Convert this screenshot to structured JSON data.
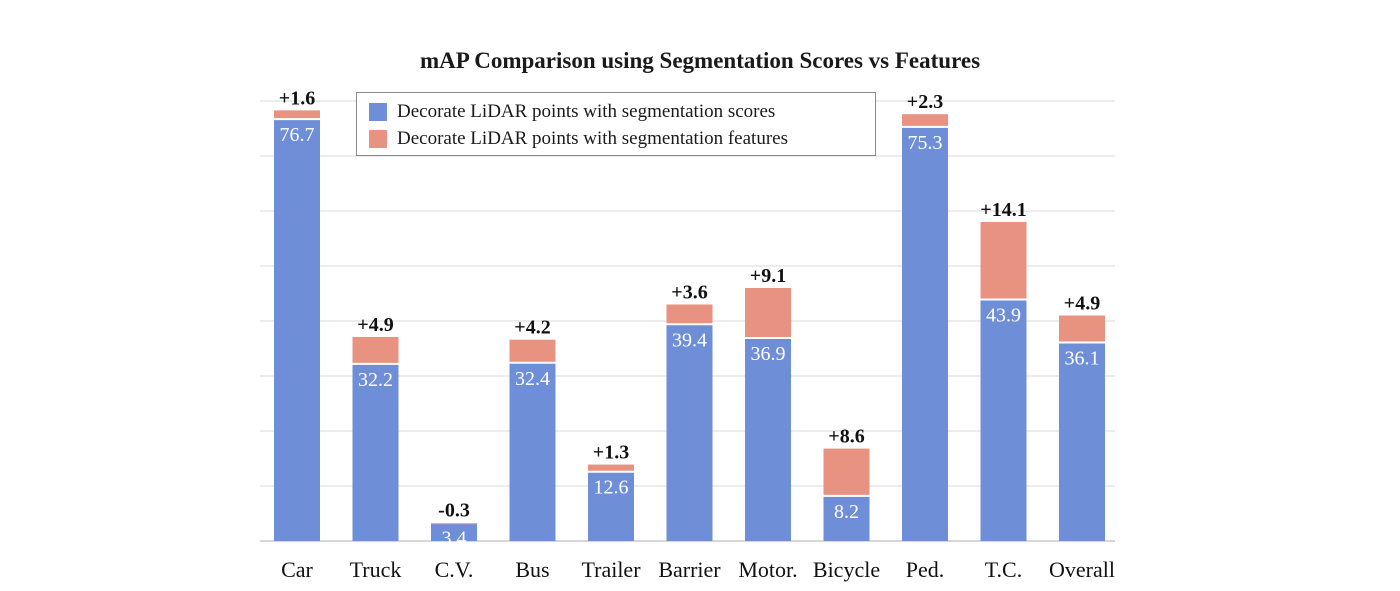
{
  "chart_data": {
    "type": "bar",
    "stacked": true,
    "title": "mAP Comparison using Segmentation Scores vs Features",
    "xlabel": "",
    "ylabel": "",
    "ylim": [
      0,
      80
    ],
    "grid": true,
    "legend_position": "top-left",
    "categories": [
      "Car",
      "Truck",
      "C.V.",
      "Bus",
      "Trailer",
      "Barrier",
      "Motor.",
      "Bicycle",
      "Ped.",
      "T.C.",
      "Overall"
    ],
    "series": [
      {
        "name": "Decorate LiDAR points with segmentation scores",
        "color": "#6e8fd8",
        "values": [
          76.7,
          32.2,
          3.4,
          32.4,
          12.6,
          39.4,
          36.9,
          8.2,
          75.3,
          43.9,
          36.1
        ],
        "labels": [
          "76.7",
          "32.2",
          "3.4",
          "32.4",
          "12.6",
          "39.4",
          "36.9",
          "8.2",
          "75.3",
          "43.9",
          "36.1"
        ]
      },
      {
        "name": "Decorate LiDAR points with segmentation features",
        "color": "#e89282",
        "values": [
          1.6,
          4.9,
          -0.3,
          4.2,
          1.3,
          3.6,
          9.1,
          8.6,
          2.3,
          14.1,
          4.9
        ],
        "labels": [
          "+1.6",
          "+4.9",
          "-0.3",
          "+4.2",
          "+1.3",
          "+3.6",
          "+9.1",
          "+8.6",
          "+2.3",
          "+14.1",
          "+4.9"
        ]
      }
    ]
  }
}
